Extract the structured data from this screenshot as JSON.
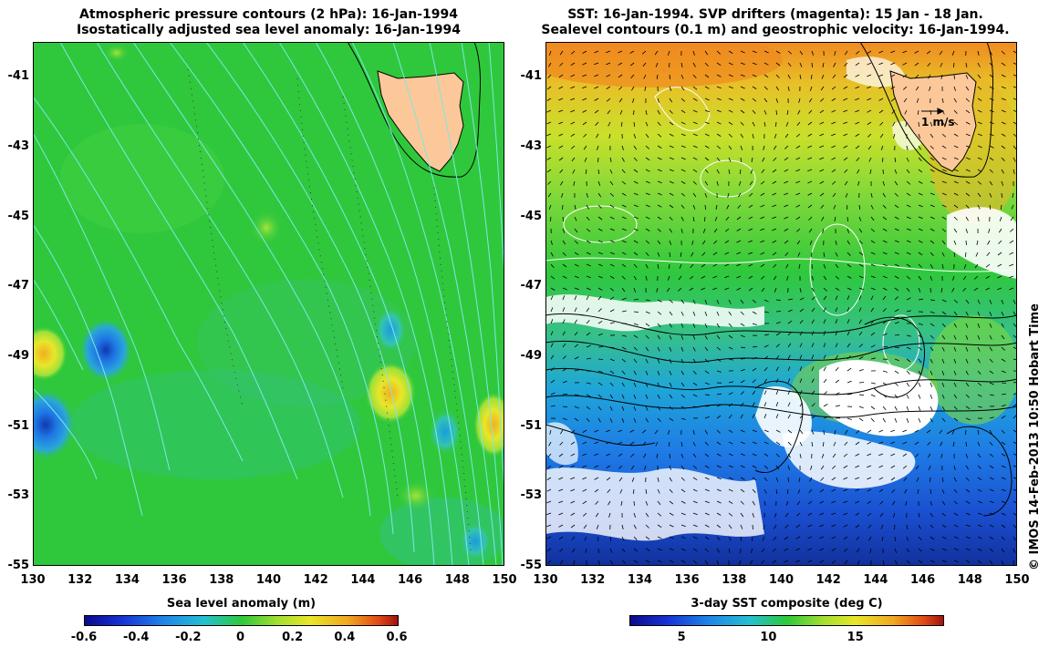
{
  "left_panel": {
    "title_line1": "Atmospheric pressure contours (2 hPa): 16-Jan-1994",
    "title_line2": "Isostatically adjusted sea level anomaly: 16-Jan-1994",
    "colorbar_label": "Sea level anomaly (m)",
    "colorbar_ticks": [
      "-0.6",
      "-0.4",
      "-0.2",
      "0",
      "0.2",
      "0.4",
      "0.6"
    ],
    "colorbar_range": [
      -0.6,
      0.6
    ]
  },
  "right_panel": {
    "title_line1": "SST: 16-Jan-1994. SVP drifters (magenta): 15 Jan - 18 Jan.",
    "title_line2": "Sealevel contours (0.1 m) and geostrophic velocity: 16-Jan-1994.",
    "colorbar_label": "3-day SST composite (deg C)",
    "colorbar_ticks": [
      "5",
      "10",
      "15"
    ],
    "colorbar_range": [
      2,
      20
    ],
    "velocity_scale_label": "1 m/s"
  },
  "axes": {
    "y_ticks": [
      "-41",
      "-43",
      "-45",
      "-47",
      "-49",
      "-51",
      "-53",
      "-55"
    ],
    "x_ticks": [
      "130",
      "132",
      "134",
      "136",
      "138",
      "140",
      "142",
      "144",
      "146",
      "148",
      "150"
    ],
    "lon_range": [
      130,
      150
    ],
    "lat_range": [
      -55,
      -40
    ]
  },
  "credit": "© IMOS 14-Feb-2013 10:50 Hobart Time",
  "colors": {
    "land": "#fcc89a",
    "sla_background": "#2fc83c",
    "pressure_contours": "#7fe6e6",
    "cloud_mask": "#ffffff",
    "sst_cold": "#1f5fe0",
    "sst_warm": "#f08020"
  }
}
